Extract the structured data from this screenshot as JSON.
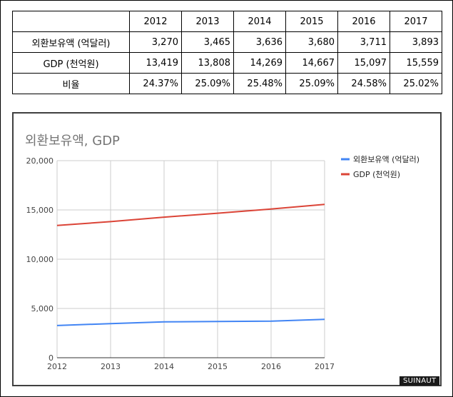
{
  "table": {
    "years": [
      "2012",
      "2013",
      "2014",
      "2015",
      "2016",
      "2017"
    ],
    "rows": [
      {
        "label": "외환보유액 (억달러)",
        "cells": [
          "3,270",
          "3,465",
          "3,636",
          "3,680",
          "3,711",
          "3,893"
        ]
      },
      {
        "label": "GDP (천억원)",
        "cells": [
          "13,419",
          "13,808",
          "14,269",
          "14,667",
          "15,097",
          "15,559"
        ]
      },
      {
        "label": "비율",
        "cells": [
          "24.37%",
          "25.09%",
          "25.48%",
          "25.09%",
          "24.58%",
          "25.02%"
        ]
      }
    ]
  },
  "chart_data": {
    "type": "line",
    "title": "외환보유액, GDP",
    "x": [
      "2012",
      "2013",
      "2014",
      "2015",
      "2016",
      "2017"
    ],
    "ylim": [
      0,
      20000
    ],
    "y_ticks": [
      "0",
      "5,000",
      "10,000",
      "15,000",
      "20,000"
    ],
    "y_tick_values": [
      0,
      5000,
      10000,
      15000,
      20000
    ],
    "grid": true,
    "legend_position": "right",
    "series": [
      {
        "name": "외환보유액 (억달러)",
        "color": "#4285f4",
        "values": [
          3270,
          3465,
          3636,
          3680,
          3711,
          3893
        ]
      },
      {
        "name": "GDP (천억원)",
        "color": "#db4437",
        "values": [
          13419,
          13808,
          14269,
          14667,
          15097,
          15559
        ]
      }
    ]
  },
  "watermark": "SUINAUT"
}
